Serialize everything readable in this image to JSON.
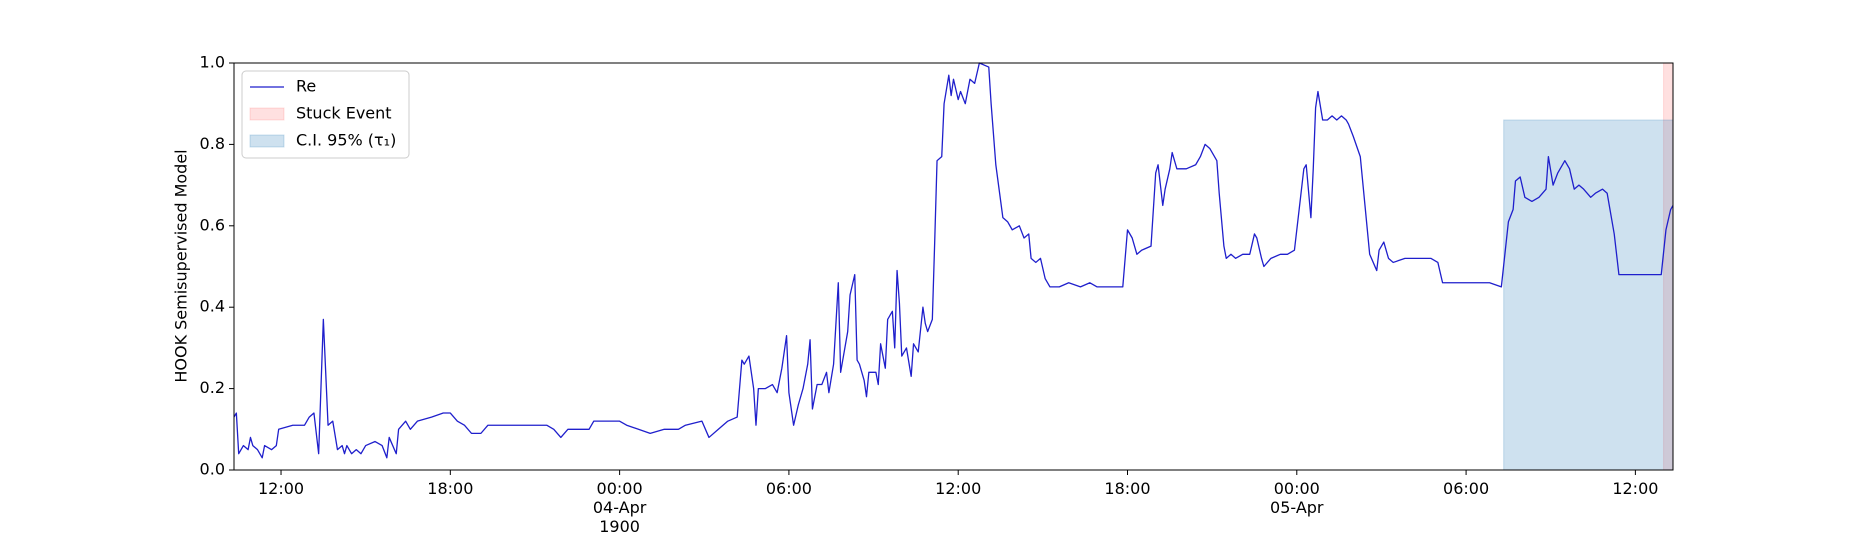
{
  "chart_data": {
    "type": "line",
    "ylabel": "HOOK Semisupervised Model",
    "x": [
      "1900-04-03 10:20",
      "1900-04-03 10:25",
      "1900-04-03 10:30",
      "1900-04-03 10:40",
      "1900-04-03 10:50",
      "1900-04-03 10:55",
      "1900-04-03 11:00",
      "1900-04-03 11:10",
      "1900-04-03 11:20",
      "1900-04-03 11:25",
      "1900-04-03 11:40",
      "1900-04-03 11:50",
      "1900-04-03 11:55",
      "1900-04-03 12:25",
      "1900-04-03 12:50",
      "1900-04-03 13:00",
      "1900-04-03 13:10",
      "1900-04-03 13:20",
      "1900-04-03 13:30",
      "1900-04-03 13:40",
      "1900-04-03 13:50",
      "1900-04-03 14:00",
      "1900-04-03 14:10",
      "1900-04-03 14:15",
      "1900-04-03 14:20",
      "1900-04-03 14:30",
      "1900-04-03 14:40",
      "1900-04-03 14:50",
      "1900-04-03 15:00",
      "1900-04-03 15:20",
      "1900-04-03 15:35",
      "1900-04-03 15:45",
      "1900-04-03 15:50",
      "1900-04-03 16:05",
      "1900-04-03 16:10",
      "1900-04-03 16:25",
      "1900-04-03 16:35",
      "1900-04-03 16:50",
      "1900-04-03 17:20",
      "1900-04-03 17:45",
      "1900-04-03 18:00",
      "1900-04-03 18:15",
      "1900-04-03 18:30",
      "1900-04-03 18:45",
      "1900-04-03 19:05",
      "1900-04-03 19:20",
      "1900-04-03 20:00",
      "1900-04-03 20:45",
      "1900-04-03 21:25",
      "1900-04-03 21:40",
      "1900-04-03 21:55",
      "1900-04-03 22:10",
      "1900-04-03 22:55",
      "1900-04-03 23:05",
      "1900-04-04 00:00",
      "1900-04-04 00:15",
      "1900-04-04 00:40",
      "1900-04-04 01:05",
      "1900-04-04 01:35",
      "1900-04-04 02:05",
      "1900-04-04 02:20",
      "1900-04-04 02:55",
      "1900-04-04 03:10",
      "1900-04-04 03:30",
      "1900-04-04 03:50",
      "1900-04-04 04:10",
      "1900-04-04 04:20",
      "1900-04-04 04:25",
      "1900-04-04 04:35",
      "1900-04-04 04:45",
      "1900-04-04 04:50",
      "1900-04-04 04:55",
      "1900-04-04 05:10",
      "1900-04-04 05:25",
      "1900-04-04 05:35",
      "1900-04-04 05:45",
      "1900-04-04 05:55",
      "1900-04-04 06:00",
      "1900-04-04 06:10",
      "1900-04-04 06:20",
      "1900-04-04 06:30",
      "1900-04-04 06:40",
      "1900-04-04 06:45",
      "1900-04-04 06:50",
      "1900-04-04 07:00",
      "1900-04-04 07:10",
      "1900-04-04 07:20",
      "1900-04-04 07:25",
      "1900-04-04 07:35",
      "1900-04-04 07:45",
      "1900-04-04 07:50",
      "1900-04-04 08:05",
      "1900-04-04 08:10",
      "1900-04-04 08:20",
      "1900-04-04 08:25",
      "1900-04-04 08:30",
      "1900-04-04 08:40",
      "1900-04-04 08:45",
      "1900-04-04 08:50",
      "1900-04-04 09:05",
      "1900-04-04 09:10",
      "1900-04-04 09:15",
      "1900-04-04 09:25",
      "1900-04-04 09:30",
      "1900-04-04 09:40",
      "1900-04-04 09:45",
      "1900-04-04 09:50",
      "1900-04-04 09:55",
      "1900-04-04 10:00",
      "1900-04-04 10:10",
      "1900-04-04 10:20",
      "1900-04-04 10:25",
      "1900-04-04 10:35",
      "1900-04-04 10:45",
      "1900-04-04 10:50",
      "1900-04-04 10:55",
      "1900-04-04 11:05",
      "1900-04-04 11:10",
      "1900-04-04 11:15",
      "1900-04-04 11:25",
      "1900-04-04 11:30",
      "1900-04-04 11:40",
      "1900-04-04 11:45",
      "1900-04-04 11:50",
      "1900-04-04 12:00",
      "1900-04-04 12:05",
      "1900-04-04 12:15",
      "1900-04-04 12:25",
      "1900-04-04 12:35",
      "1900-04-04 12:45",
      "1900-04-04 13:05",
      "1900-04-04 13:10",
      "1900-04-04 13:20",
      "1900-04-04 13:35",
      "1900-04-04 13:45",
      "1900-04-04 13:55",
      "1900-04-04 14:10",
      "1900-04-04 14:20",
      "1900-04-04 14:30",
      "1900-04-04 14:35",
      "1900-04-04 14:45",
      "1900-04-04 14:55",
      "1900-04-04 15:05",
      "1900-04-04 15:15",
      "1900-04-04 15:35",
      "1900-04-04 15:55",
      "1900-04-04 16:20",
      "1900-04-04 16:40",
      "1900-04-04 16:55",
      "1900-04-04 17:20",
      "1900-04-04 17:50",
      "1900-04-04 18:00",
      "1900-04-04 18:10",
      "1900-04-04 18:20",
      "1900-04-04 18:30",
      "1900-04-04 18:50",
      "1900-04-04 19:00",
      "1900-04-04 19:05",
      "1900-04-04 19:15",
      "1900-04-04 19:20",
      "1900-04-04 19:30",
      "1900-04-04 19:35",
      "1900-04-04 19:45",
      "1900-04-04 20:05",
      "1900-04-04 20:25",
      "1900-04-04 20:35",
      "1900-04-04 20:45",
      "1900-04-04 20:55",
      "1900-04-04 21:10",
      "1900-04-04 21:15",
      "1900-04-04 21:25",
      "1900-04-04 21:30",
      "1900-04-04 21:40",
      "1900-04-04 21:50",
      "1900-04-04 22:05",
      "1900-04-04 22:20",
      "1900-04-04 22:30",
      "1900-04-04 22:35",
      "1900-04-04 22:45",
      "1900-04-04 22:50",
      "1900-04-04 23:05",
      "1900-04-04 23:25",
      "1900-04-04 23:40",
      "1900-04-04 23:55",
      "1900-04-05 00:05",
      "1900-04-05 00:15",
      "1900-04-05 00:20",
      "1900-04-05 00:30",
      "1900-04-05 00:35",
      "1900-04-05 00:40",
      "1900-04-05 00:45",
      "1900-04-05 00:55",
      "1900-04-05 01:05",
      "1900-04-05 01:15",
      "1900-04-05 01:25",
      "1900-04-05 01:35",
      "1900-04-05 01:45",
      "1900-04-05 01:50",
      "1900-04-05 02:00",
      "1900-04-05 02:15",
      "1900-04-05 02:25",
      "1900-04-05 02:35",
      "1900-04-05 02:50",
      "1900-04-05 02:55",
      "1900-04-05 03:05",
      "1900-04-05 03:15",
      "1900-04-05 03:25",
      "1900-04-05 03:50",
      "1900-04-05 04:25",
      "1900-04-05 04:45",
      "1900-04-05 05:00",
      "1900-04-05 05:10",
      "1900-04-05 05:35",
      "1900-04-05 06:10",
      "1900-04-05 06:50",
      "1900-04-05 07:15",
      "1900-04-05 07:30",
      "1900-04-05 07:40",
      "1900-04-05 07:45",
      "1900-04-05 07:55",
      "1900-04-05 08:05",
      "1900-04-05 08:20",
      "1900-04-05 08:35",
      "1900-04-05 08:50",
      "1900-04-05 08:55",
      "1900-04-05 09:05",
      "1900-04-05 09:15",
      "1900-04-05 09:30",
      "1900-04-05 09:40",
      "1900-04-05 09:50",
      "1900-04-05 10:00",
      "1900-04-05 10:10",
      "1900-04-05 10:25",
      "1900-04-05 10:35",
      "1900-04-05 10:50",
      "1900-04-05 11:00",
      "1900-04-05 11:15",
      "1900-04-05 11:25",
      "1900-04-05 11:40",
      "1900-04-05 12:00",
      "1900-04-05 12:15",
      "1900-04-05 12:35",
      "1900-04-05 12:55",
      "1900-04-05 13:05",
      "1900-04-05 13:15",
      "1900-04-05 13:20"
    ],
    "series": [
      {
        "name": "Re",
        "color": "#1f1fcc",
        "values": [
          0.13,
          0.14,
          0.04,
          0.06,
          0.05,
          0.08,
          0.06,
          0.05,
          0.03,
          0.06,
          0.05,
          0.06,
          0.1,
          0.11,
          0.11,
          0.13,
          0.14,
          0.04,
          0.37,
          0.11,
          0.12,
          0.05,
          0.06,
          0.04,
          0.06,
          0.04,
          0.05,
          0.04,
          0.06,
          0.07,
          0.06,
          0.03,
          0.08,
          0.04,
          0.1,
          0.12,
          0.1,
          0.12,
          0.13,
          0.14,
          0.14,
          0.12,
          0.11,
          0.09,
          0.09,
          0.11,
          0.11,
          0.11,
          0.11,
          0.1,
          0.08,
          0.1,
          0.1,
          0.12,
          0.12,
          0.11,
          0.1,
          0.09,
          0.1,
          0.1,
          0.11,
          0.12,
          0.08,
          0.1,
          0.12,
          0.13,
          0.27,
          0.26,
          0.28,
          0.2,
          0.11,
          0.2,
          0.2,
          0.21,
          0.19,
          0.25,
          0.33,
          0.19,
          0.11,
          0.16,
          0.2,
          0.26,
          0.32,
          0.15,
          0.21,
          0.21,
          0.24,
          0.19,
          0.26,
          0.46,
          0.24,
          0.34,
          0.43,
          0.48,
          0.27,
          0.26,
          0.22,
          0.18,
          0.24,
          0.24,
          0.21,
          0.31,
          0.25,
          0.37,
          0.39,
          0.3,
          0.49,
          0.41,
          0.28,
          0.3,
          0.23,
          0.31,
          0.29,
          0.4,
          0.36,
          0.34,
          0.37,
          0.56,
          0.76,
          0.77,
          0.9,
          0.97,
          0.92,
          0.96,
          0.91,
          0.93,
          0.9,
          0.96,
          0.95,
          1.0,
          0.99,
          0.9,
          0.75,
          0.62,
          0.61,
          0.59,
          0.6,
          0.57,
          0.58,
          0.52,
          0.51,
          0.52,
          0.47,
          0.45,
          0.45,
          0.46,
          0.45,
          0.46,
          0.45,
          0.45,
          0.45,
          0.59,
          0.57,
          0.53,
          0.54,
          0.55,
          0.73,
          0.75,
          0.65,
          0.69,
          0.74,
          0.78,
          0.74,
          0.74,
          0.75,
          0.77,
          0.8,
          0.79,
          0.76,
          0.68,
          0.55,
          0.52,
          0.53,
          0.52,
          0.53,
          0.53,
          0.58,
          0.57,
          0.52,
          0.5,
          0.52,
          0.53,
          0.53,
          0.54,
          0.64,
          0.74,
          0.75,
          0.62,
          0.74,
          0.89,
          0.93,
          0.86,
          0.86,
          0.87,
          0.86,
          0.87,
          0.86,
          0.85,
          0.82,
          0.77,
          0.65,
          0.53,
          0.49,
          0.54,
          0.56,
          0.52,
          0.51,
          0.52,
          0.52,
          0.52,
          0.51,
          0.46,
          0.46,
          0.46,
          0.46,
          0.45,
          0.61,
          0.64,
          0.71,
          0.72,
          0.67,
          0.66,
          0.67,
          0.69,
          0.77,
          0.7,
          0.73,
          0.76,
          0.74,
          0.69,
          0.7,
          0.69,
          0.67,
          0.68,
          0.69,
          0.68,
          0.58,
          0.48,
          0.48,
          0.48,
          0.48,
          0.48,
          0.48,
          0.59,
          0.64,
          0.65
        ]
      }
    ],
    "intervals": [
      {
        "name": "Stuck Event",
        "color": "rgba(255,0,0,0.12)",
        "x": [
          "1900-04-05 13:00",
          "1900-04-05 13:20"
        ],
        "y": [
          0,
          1
        ]
      },
      {
        "name": "C.I. 95% (τ₁)",
        "color": "rgba(31,119,180,0.22)",
        "x": [
          "1900-04-05 07:20",
          "1900-04-05 13:20"
        ],
        "y": [
          0,
          0.86
        ]
      }
    ],
    "xlim": [
      "1900-04-03 10:20",
      "1900-04-05 13:20"
    ],
    "xticks": [
      {
        "value": "1900-04-03 12:00",
        "label": "12:00"
      },
      {
        "value": "1900-04-03 18:00",
        "label": "18:00"
      },
      {
        "value": "1900-04-04 00:00",
        "label": "00:00\n04-Apr\n1900"
      },
      {
        "value": "1900-04-04 06:00",
        "label": "06:00"
      },
      {
        "value": "1900-04-04 12:00",
        "label": "12:00"
      },
      {
        "value": "1900-04-04 18:00",
        "label": "18:00"
      },
      {
        "value": "1900-04-05 00:00",
        "label": "00:00\n05-Apr"
      },
      {
        "value": "1900-04-05 06:00",
        "label": "06:00"
      },
      {
        "value": "1900-04-05 12:00",
        "label": "12:00"
      }
    ],
    "ylim": [
      0,
      1
    ],
    "yticks": [
      {
        "value": 0,
        "label": "0.0"
      },
      0.2,
      0.4,
      0.6,
      0.8,
      {
        "value": 1,
        "label": "1.0"
      }
    ],
    "grid": false,
    "legend": "upper left"
  }
}
